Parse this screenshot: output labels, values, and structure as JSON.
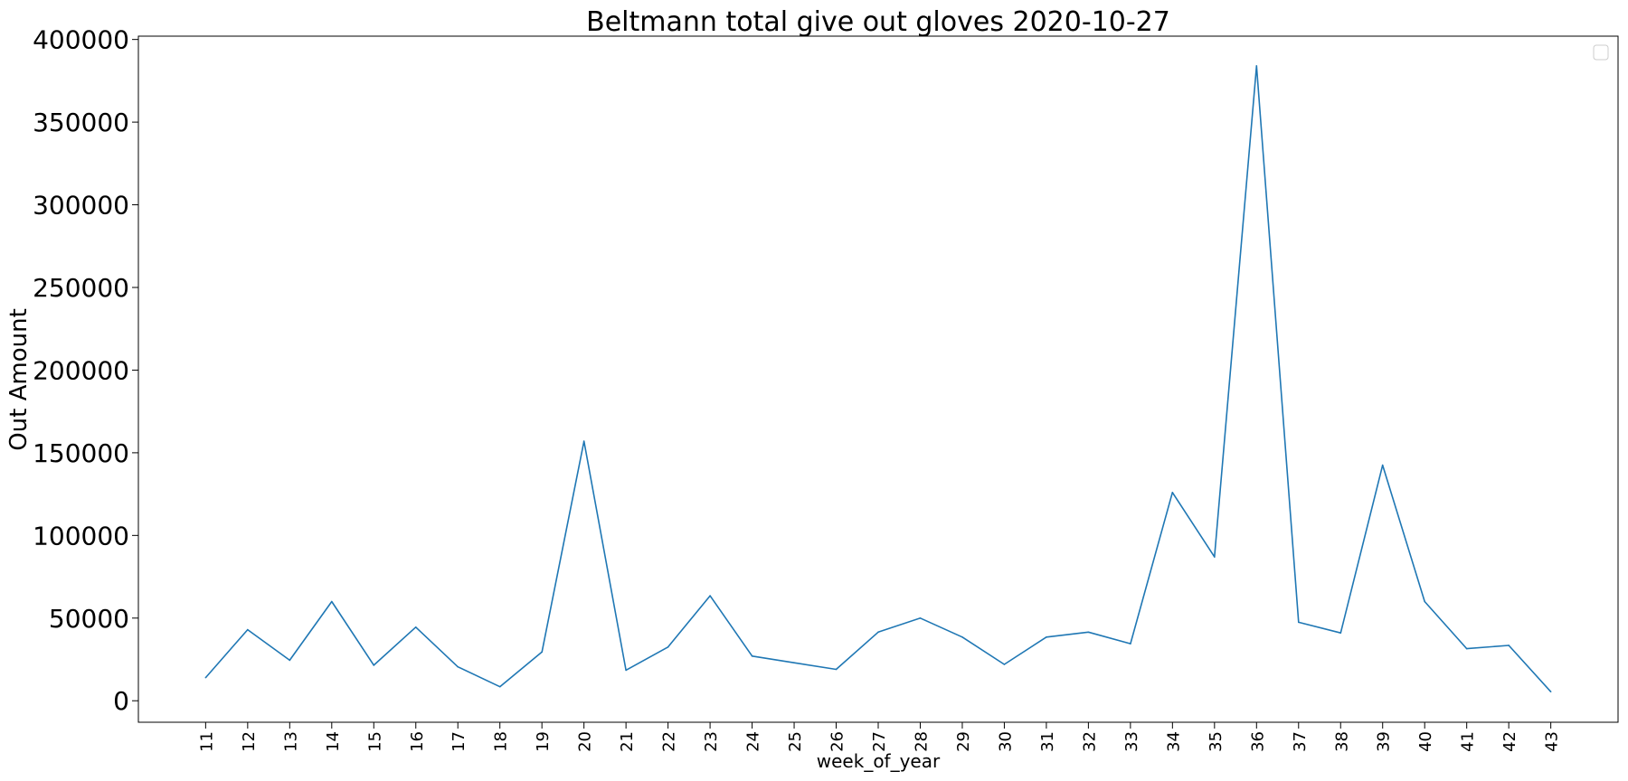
{
  "chart_data": {
    "type": "line",
    "title": "Beltmann total give out gloves 2020-10-27",
    "xlabel": "week_of_year",
    "ylabel": "Out Amount",
    "x": [
      11,
      12,
      13,
      14,
      15,
      16,
      17,
      18,
      19,
      20,
      21,
      22,
      23,
      24,
      25,
      26,
      27,
      28,
      29,
      30,
      31,
      32,
      33,
      34,
      35,
      36,
      37,
      38,
      39,
      40,
      41,
      42,
      43
    ],
    "series": [
      {
        "values": [
          14000,
          43000,
          24500,
          60000,
          21500,
          44500,
          20500,
          8500,
          29500,
          157000,
          18500,
          32500,
          63500,
          27000,
          23000,
          19000,
          41500,
          50000,
          38500,
          22000,
          38500,
          41500,
          34500,
          126000,
          87000,
          384000,
          47500,
          41000,
          142500,
          60000,
          31500,
          33500,
          5500
        ],
        "color": "#1f77b4"
      }
    ],
    "ylim": [
      -13000,
      402000
    ],
    "yticks": [
      0,
      50000,
      100000,
      150000,
      200000,
      250000,
      300000,
      350000,
      400000
    ],
    "xlim": [
      9.4,
      44.6
    ],
    "grid": false,
    "legend": "top-right, empty"
  }
}
